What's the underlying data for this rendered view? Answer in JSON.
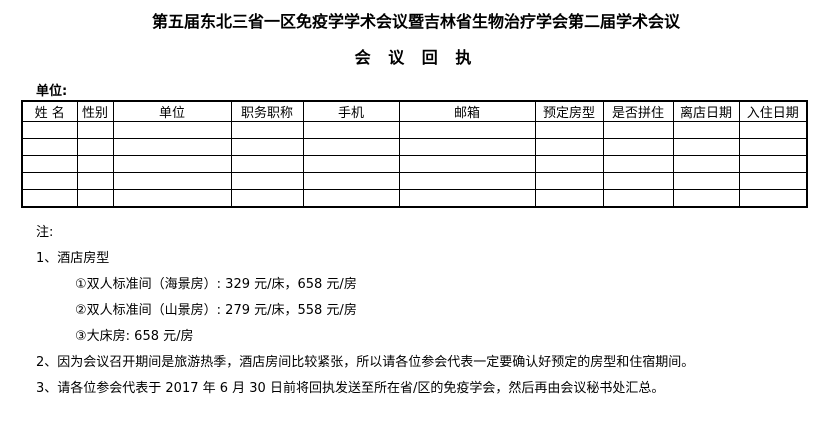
{
  "title": "第五届东北三省一区免疫学学术会议暨吉林省生物治疗学会第二届学术会议",
  "subtitle": "会 议 回 执",
  "unit_label": "单位:",
  "colors": {
    "text": "#000000",
    "background": "#ffffff",
    "table_border": "#000000"
  },
  "table": {
    "headers": [
      "姓 名",
      "性别",
      "单位",
      "职务职称",
      "手机",
      "邮箱",
      "预定房型",
      "是否拼住",
      "离店日期",
      "入住日期"
    ],
    "empty_rows": 5
  },
  "notes": {
    "label": "注:",
    "items": [
      {
        "text": "1、酒店房型",
        "indent": 0
      },
      {
        "text": "①双人标准间（海景房）: 329 元/床，658 元/房",
        "indent": 1
      },
      {
        "text": "②双人标准间（山景房）: 279 元/床，558 元/房",
        "indent": 1
      },
      {
        "text": "③大床房: 658 元/房",
        "indent": 1
      },
      {
        "text": "2、因为会议召开期间是旅游热季，酒店房间比较紧张，所以请各位参会代表一定要确认好预定的房型和住宿期间。",
        "indent": 0
      },
      {
        "text": "3、请各位参会代表于 2017 年 6 月 30 日前将回执发送至所在省/区的免疫学会，然后再由会议秘书处汇总。",
        "indent": 0
      }
    ]
  }
}
